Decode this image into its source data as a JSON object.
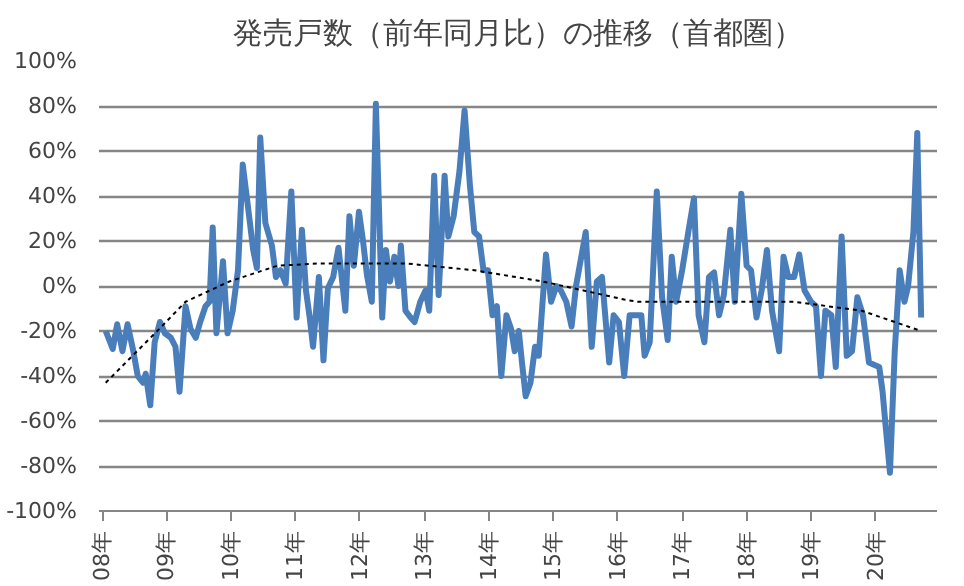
{
  "chart_data": {
    "type": "line",
    "title": "発売戸数（前年同月比）の推移（首都圏）",
    "xlim": [
      "2007-12-15",
      "2020-12-15"
    ],
    "ylim": [
      -100,
      100
    ],
    "xticks": [
      {
        "value": "2008-01-01",
        "label": "08年"
      },
      {
        "value": "2009-01-01",
        "label": "09年"
      },
      {
        "value": "2010-01-01",
        "label": "10年"
      },
      {
        "value": "2011-01-01",
        "label": "11年"
      },
      {
        "value": "2012-01-01",
        "label": "12年"
      },
      {
        "value": "2013-01-01",
        "label": "13年"
      },
      {
        "value": "2014-01-01",
        "label": "14年"
      },
      {
        "value": "2015-01-01",
        "label": "15年"
      },
      {
        "value": "2016-01-01",
        "label": "16年"
      },
      {
        "value": "2017-01-01",
        "label": "17年"
      },
      {
        "value": "2018-01-01",
        "label": "18年"
      },
      {
        "value": "2019-01-01",
        "label": "19年"
      },
      {
        "value": "2020-01-01",
        "label": "20年"
      }
    ],
    "yticks": [
      {
        "value": -100,
        "label": "-100%"
      },
      {
        "value": -80,
        "label": "-80%"
      },
      {
        "value": -60,
        "label": "-60%"
      },
      {
        "value": -40,
        "label": "-40%"
      },
      {
        "value": -20,
        "label": "-20%"
      },
      {
        "value": 0,
        "label": "0%"
      },
      {
        "value": 20,
        "label": "20%"
      },
      {
        "value": 40,
        "label": "40%"
      },
      {
        "value": 60,
        "label": "60%"
      },
      {
        "value": 80,
        "label": "80%"
      },
      {
        "value": 100,
        "label": "100%"
      }
    ],
    "grid": "y",
    "marker": "none",
    "series": [
      {
        "color": "#4a7ebb",
        "line_style": "solid",
        "x": [
          "2008-01-22",
          "2008-03-02",
          "2008-03-27",
          "2008-04-26",
          "2008-05-25",
          "2008-06-27",
          "2008-07-22",
          "2008-08-21",
          "2008-09-05",
          "2008-10-01",
          "2008-10-26",
          "2008-11-25",
          "2008-12-23",
          "2009-01-26",
          "2009-02-21",
          "2009-03-16",
          "2009-04-19",
          "2009-05-17",
          "2009-06-16",
          "2009-07-11",
          "2009-08-10",
          "2009-09-02",
          "2009-09-20",
          "2009-10-11",
          "2009-11-17",
          "2009-12-13",
          "2010-01-11",
          "2010-02-10",
          "2010-03-09",
          "2010-04-11",
          "2010-05-07",
          "2010-05-28",
          "2010-06-16",
          "2010-07-15",
          "2010-08-21",
          "2010-09-13",
          "2010-10-08",
          "2010-11-07",
          "2010-12-09",
          "2011-01-08",
          "2011-02-07",
          "2011-03-02",
          "2011-03-23",
          "2011-04-11",
          "2011-05-14",
          "2011-06-09",
          "2011-07-04",
          "2011-08-03",
          "2011-09-02",
          "2011-10-11",
          "2011-11-03",
          "2011-11-28",
          "2011-12-27",
          "2012-01-19",
          "2012-02-10",
          "2012-03-09",
          "2012-04-01",
          "2012-05-07",
          "2012-05-28",
          "2012-06-20",
          "2012-07-15",
          "2012-08-07",
          "2012-08-21",
          "2012-09-16",
          "2012-10-15",
          "2012-11-07",
          "2012-12-09",
          "2013-01-08",
          "2013-01-29",
          "2013-02-26",
          "2013-03-23",
          "2013-04-26",
          "2013-05-17",
          "2013-06-16",
          "2013-07-19",
          "2013-08-17",
          "2013-09-16",
          "2013-10-11",
          "2013-11-07",
          "2013-12-02",
          "2013-12-27",
          "2014-01-22",
          "2014-02-16",
          "2014-03-13",
          "2014-04-11",
          "2014-05-07",
          "2014-05-28",
          "2014-06-20",
          "2014-07-08",
          "2014-07-29",
          "2014-08-25",
          "2014-09-20",
          "2014-10-11",
          "2014-11-21",
          "2014-12-20",
          "2015-01-19",
          "2015-02-13",
          "2015-03-16",
          "2015-04-15",
          "2015-05-10",
          "2015-06-09",
          "2015-07-04",
          "2015-08-07",
          "2015-09-05",
          "2015-10-04",
          "2015-11-14",
          "2015-12-09",
          "2016-01-08",
          "2016-02-07",
          "2016-03-09",
          "2016-04-04",
          "2016-05-14",
          "2016-06-02",
          "2016-07-01",
          "2016-08-10",
          "2016-09-09",
          "2016-10-11",
          "2016-11-03",
          "2016-11-28",
          "2017-01-01",
          "2017-02-07",
          "2017-03-09",
          "2017-04-04",
          "2017-05-07",
          "2017-06-02",
          "2017-07-01",
          "2017-07-29",
          "2017-08-25",
          "2017-10-01",
          "2017-10-26",
          "2017-12-02",
          "2018-01-01",
          "2018-01-26",
          "2018-02-26",
          "2018-03-27",
          "2018-04-26",
          "2018-05-25",
          "2018-07-04",
          "2018-07-29",
          "2018-08-25",
          "2018-09-27",
          "2018-10-26",
          "2018-11-25",
          "2019-01-01",
          "2019-01-29",
          "2019-02-26",
          "2019-03-23",
          "2019-04-26",
          "2019-05-21",
          "2019-06-23",
          "2019-07-22",
          "2019-08-21",
          "2019-09-20",
          "2019-10-22",
          "2019-11-25",
          "2019-12-23",
          "2020-01-22",
          "2020-02-10",
          "2020-02-26",
          "2020-03-23",
          "2020-04-19",
          "2020-05-17",
          "2020-06-13",
          "2020-07-04",
          "2020-08-03",
          "2020-08-25",
          "2020-09-16"
        ],
        "values": [
          -20,
          -28,
          -17,
          -29,
          -17,
          -29,
          -40,
          -43,
          -39,
          -53,
          -25,
          -16,
          -21,
          -23,
          -27,
          -47,
          -9,
          -19,
          -23,
          -16,
          -9,
          -7,
          26,
          -21,
          11,
          -21,
          -11,
          7,
          54,
          33,
          16,
          8,
          66,
          28,
          18,
          4,
          7,
          1,
          42,
          -14,
          25,
          -2,
          -14,
          -27,
          4,
          -33,
          -1,
          4,
          17,
          -11,
          31,
          9,
          33,
          20,
          5,
          -7,
          81,
          -14,
          16,
          2,
          13,
          0,
          18,
          -11,
          -14,
          -16,
          -7,
          -2,
          -11,
          49,
          -4,
          49,
          22,
          31,
          51,
          78,
          45,
          24,
          22,
          7,
          7,
          -13,
          -9,
          -40,
          -13,
          -19,
          -29,
          -20,
          -34,
          -49,
          -43,
          -27,
          -31,
          14,
          -7,
          0,
          -2,
          -7,
          -18,
          0,
          13,
          24,
          -27,
          2,
          4,
          -34,
          -13,
          -16,
          -40,
          -13,
          -13,
          -13,
          -31,
          -25,
          42,
          -5,
          -24,
          13,
          -7,
          7,
          25,
          39,
          -13,
          -25,
          4,
          6,
          -13,
          -4,
          25,
          -7,
          41,
          9,
          7,
          -14,
          -2,
          16,
          -11,
          -29,
          13,
          4,
          4,
          14,
          -2,
          -7,
          -9,
          -40,
          -11,
          -13,
          -36,
          22,
          -31,
          -29,
          -5,
          -13,
          -34,
          -35,
          -36,
          -47,
          -61,
          -83,
          -29,
          7,
          -7,
          0,
          24,
          68,
          -14
        ]
      },
      {
        "color": "#000000",
        "line_style": "dotted",
        "x": [
          "2008-01-22",
          "2008-12-05",
          "2009-04-19",
          "2009-12-23",
          "2010-09-20",
          "2011-05-07",
          "2012-04-01",
          "2012-09-23",
          "2013-10-11",
          "2014-11-03",
          "2016-02-07",
          "2016-04-22",
          "2017-05-14",
          "2018-09-27",
          "2019-10-15",
          "2020-09-16"
        ],
        "values": [
          -43,
          -18,
          -7,
          2,
          9,
          10,
          10,
          10,
          7,
          2,
          -6,
          -7,
          -7,
          -7,
          -11,
          -20
        ]
      }
    ]
  }
}
